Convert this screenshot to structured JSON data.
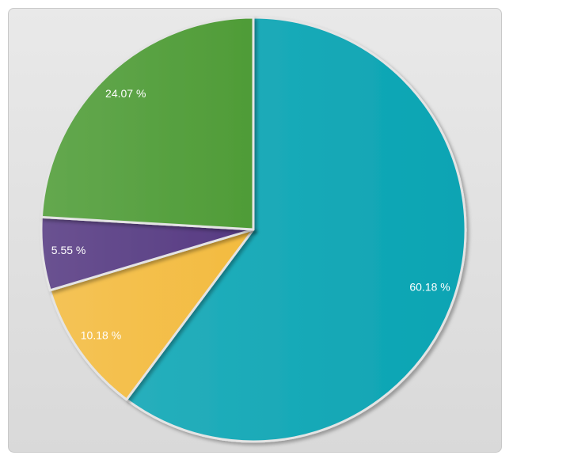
{
  "chart_data": {
    "type": "pie",
    "values": [
      60.18,
      10.18,
      5.55,
      24.07
    ],
    "value_labels": [
      "60.18 %",
      "10.18 %",
      "5.55 %",
      "24.07 %"
    ],
    "colors": [
      "#0aa4b3",
      "#f3bb3f",
      "#563a82",
      "#4f9c37"
    ],
    "start_angle": 0,
    "direction": "clockwise"
  }
}
